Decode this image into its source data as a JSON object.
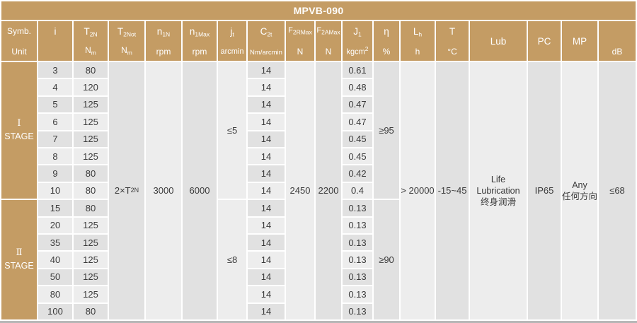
{
  "title": "MPVB-090",
  "colors": {
    "accent_tan": "#c49c64",
    "cell_dark": "#e1e1e1",
    "cell_light": "#ededed",
    "header_text": "#ffffff",
    "body_text": "#3b3b3b"
  },
  "header": {
    "columns": [
      {
        "id": "symb",
        "s": "Symb.",
        "u": "Unit"
      },
      {
        "id": "i",
        "s": "i",
        "u": ""
      },
      {
        "id": "t2n",
        "s": "T",
        "ss": "2N",
        "u": "N",
        "us": "m"
      },
      {
        "id": "t2not",
        "s": "T",
        "ss": "2Not",
        "u": "N",
        "us": "m"
      },
      {
        "id": "n1n",
        "s": "n",
        "ss": "1N",
        "u": "rpm"
      },
      {
        "id": "n1max",
        "s": "n",
        "ss": "1Max",
        "u": "rpm"
      },
      {
        "id": "jt",
        "s": "j",
        "ss": "t",
        "u": "arcmin"
      },
      {
        "id": "c2t",
        "s": "C",
        "ss": "2t",
        "u": "Nm/arcmin"
      },
      {
        "id": "f2rmax",
        "s": "F",
        "ss": "2RMax",
        "u": "N"
      },
      {
        "id": "f2amax",
        "s": "F",
        "ss": "2AMax",
        "u": "N"
      },
      {
        "id": "j1",
        "s": "J",
        "ss": "1",
        "u": "kgcm",
        "usup": "2"
      },
      {
        "id": "eta",
        "s": "η",
        "u": "%"
      },
      {
        "id": "lh",
        "s": "L",
        "ss": "h",
        "u": "h"
      },
      {
        "id": "t",
        "s": "T",
        "u": "°C"
      },
      {
        "id": "lub",
        "s": "Lub"
      },
      {
        "id": "pc",
        "s": "PC"
      },
      {
        "id": "mp",
        "s": "MP"
      },
      {
        "id": "db",
        "s": "",
        "u": "dB"
      }
    ]
  },
  "stages": [
    {
      "numeral": "Ⅰ",
      "stage_word": "STAGE",
      "jt": "≤5",
      "eta": "≥95",
      "rows": [
        {
          "i": "3",
          "t2n": "80",
          "c2t": "14",
          "j1": "0.61"
        },
        {
          "i": "4",
          "t2n": "120",
          "c2t": "14",
          "j1": "0.48"
        },
        {
          "i": "5",
          "t2n": "125",
          "c2t": "14",
          "j1": "0.47"
        },
        {
          "i": "6",
          "t2n": "125",
          "c2t": "14",
          "j1": "0.47"
        },
        {
          "i": "7",
          "t2n": "125",
          "c2t": "14",
          "j1": "0.45"
        },
        {
          "i": "8",
          "t2n": "125",
          "c2t": "14",
          "j1": "0.45"
        },
        {
          "i": "9",
          "t2n": "80",
          "c2t": "14",
          "j1": "0.42"
        },
        {
          "i": "10",
          "t2n": "80",
          "c2t": "14",
          "j1": "0.4"
        }
      ]
    },
    {
      "numeral": "Ⅱ",
      "stage_word": "STAGE",
      "jt": "≤8",
      "eta": "≥90",
      "rows": [
        {
          "i": "15",
          "t2n": "80",
          "c2t": "14",
          "j1": "0.13"
        },
        {
          "i": "20",
          "t2n": "125",
          "c2t": "14",
          "j1": "0.13"
        },
        {
          "i": "35",
          "t2n": "125",
          "c2t": "14",
          "j1": "0.13"
        },
        {
          "i": "40",
          "t2n": "125",
          "c2t": "14",
          "j1": "0.13"
        },
        {
          "i": "50",
          "t2n": "125",
          "c2t": "14",
          "j1": "0.13"
        },
        {
          "i": "80",
          "t2n": "125",
          "c2t": "14",
          "j1": "0.13"
        },
        {
          "i": "100",
          "t2n": "80",
          "c2t": "14",
          "j1": "0.13"
        }
      ]
    }
  ],
  "spans": {
    "t2not_base": "2×T",
    "t2not_sub": "2N",
    "n1n": "3000",
    "n1max": "6000",
    "f2rmax": "2450",
    "f2amax": "2200",
    "lh": "> 20000",
    "t_range": "-15~45",
    "lub_line1": "Life",
    "lub_line2": "Lubrication",
    "lub_line3": "终身润滑",
    "pc": "IP65",
    "mp_line1": "Any",
    "mp_line2": "任何方向",
    "db": "≤68"
  }
}
